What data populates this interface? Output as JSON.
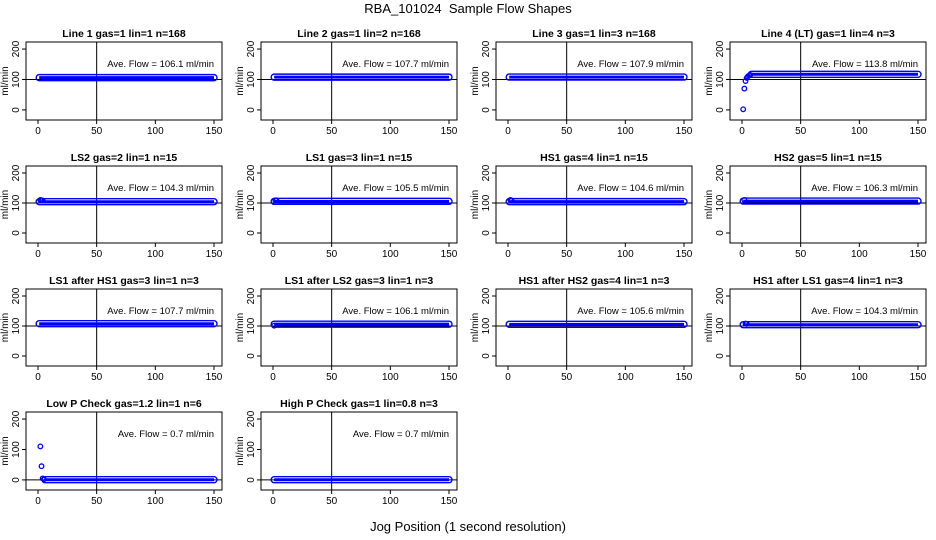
{
  "figure": {
    "title": "RBA_101024  Sample Flow Shapes",
    "xlabel": "Jog Position (1 second resolution)"
  },
  "colors": {
    "points": "#0000ff",
    "axes": "#000000"
  },
  "chart_data": [
    {
      "type": "scatter",
      "title": "Line 1 gas=1 lin=1 n=168",
      "ylabel": "ml/min",
      "annotation": "Ave. Flow =  106.1  ml/min",
      "xlim": [
        0,
        150
      ],
      "ylim": [
        -20,
        210
      ],
      "xticks": [
        0,
        50,
        100,
        150
      ],
      "yticks": [
        0,
        100,
        200
      ],
      "hline": 100,
      "vline": 50,
      "points": [],
      "band": {
        "x": [
          1,
          150
        ],
        "y": 106.1,
        "spread": 2.5
      }
    },
    {
      "type": "scatter",
      "title": "Line 2 gas=1 lin=2 n=168",
      "ylabel": "ml/min",
      "annotation": "Ave. Flow =  107.7  ml/min",
      "xlim": [
        0,
        150
      ],
      "ylim": [
        -20,
        210
      ],
      "xticks": [
        0,
        50,
        100,
        150
      ],
      "yticks": [
        0,
        100,
        200
      ],
      "hline": 100,
      "vline": 50,
      "points": [],
      "band": {
        "x": [
          1,
          150
        ],
        "y": 107.7,
        "spread": 2.5
      }
    },
    {
      "type": "scatter",
      "title": "Line 3 gas=1 lin=3 n=168",
      "ylabel": "ml/min",
      "annotation": "Ave. Flow =  107.9  ml/min",
      "xlim": [
        0,
        150
      ],
      "ylim": [
        -20,
        210
      ],
      "xticks": [
        0,
        50,
        100,
        150
      ],
      "yticks": [
        0,
        100,
        200
      ],
      "hline": 100,
      "vline": 50,
      "points": [],
      "band": {
        "x": [
          1,
          150
        ],
        "y": 107.9,
        "spread": 2.5
      }
    },
    {
      "type": "scatter",
      "title": "Line 4 (LT) gas=1 lin=4 n=3",
      "ylabel": "ml/min",
      "annotation": "Ave. Flow =  113.8  ml/min",
      "xlim": [
        0,
        150
      ],
      "ylim": [
        -20,
        210
      ],
      "xticks": [
        0,
        50,
        100,
        150
      ],
      "yticks": [
        0,
        100,
        200
      ],
      "hline": 100,
      "vline": 50,
      "points": [
        [
          1,
          2
        ],
        [
          2,
          70
        ],
        [
          3,
          95
        ],
        [
          4,
          105
        ],
        [
          5,
          110
        ],
        [
          6,
          113
        ],
        [
          7,
          115
        ]
      ],
      "band": {
        "x": [
          8,
          150
        ],
        "y": 117,
        "spread": 2.5
      }
    },
    {
      "type": "scatter",
      "title": "LS2 gas=2 lin=1 n=15",
      "ylabel": "ml/min",
      "annotation": "Ave. Flow =  104.3  ml/min",
      "xlim": [
        0,
        150
      ],
      "ylim": [
        -20,
        210
      ],
      "xticks": [
        0,
        50,
        100,
        150
      ],
      "yticks": [
        0,
        100,
        200
      ],
      "hline": 100,
      "vline": 50,
      "points": [
        [
          2,
          110
        ],
        [
          3,
          109
        ],
        [
          4,
          108
        ]
      ],
      "band": {
        "x": [
          1,
          150
        ],
        "y": 104.3,
        "spread": 2.5
      }
    },
    {
      "type": "scatter",
      "title": "LS1 gas=3 lin=1 n=15",
      "ylabel": "ml/min",
      "annotation": "Ave. Flow =  105.5  ml/min",
      "xlim": [
        0,
        150
      ],
      "ylim": [
        -20,
        210
      ],
      "xticks": [
        0,
        50,
        100,
        150
      ],
      "yticks": [
        0,
        100,
        200
      ],
      "hline": 100,
      "vline": 50,
      "points": [
        [
          2,
          109
        ],
        [
          3,
          108
        ]
      ],
      "band": {
        "x": [
          1,
          150
        ],
        "y": 105.5,
        "spread": 2.5
      }
    },
    {
      "type": "scatter",
      "title": "HS1 gas=4 lin=1 n=15",
      "ylabel": "ml/min",
      "annotation": "Ave. Flow =  104.6  ml/min",
      "xlim": [
        0,
        150
      ],
      "ylim": [
        -20,
        210
      ],
      "xticks": [
        0,
        50,
        100,
        150
      ],
      "yticks": [
        0,
        100,
        200
      ],
      "hline": 100,
      "vline": 50,
      "points": [
        [
          2,
          110
        ],
        [
          3,
          108
        ]
      ],
      "band": {
        "x": [
          1,
          150
        ],
        "y": 104.6,
        "spread": 2.5
      }
    },
    {
      "type": "scatter",
      "title": "HS2 gas=5 lin=1 n=15",
      "ylabel": "ml/min",
      "annotation": "Ave. Flow =  106.3  ml/min",
      "xlim": [
        0,
        150
      ],
      "ylim": [
        -20,
        210
      ],
      "xticks": [
        0,
        50,
        100,
        150
      ],
      "yticks": [
        0,
        100,
        200
      ],
      "hline": 100,
      "vline": 50,
      "points": [
        [
          2,
          110
        ]
      ],
      "band": {
        "x": [
          1,
          150
        ],
        "y": 106.3,
        "spread": 3
      }
    },
    {
      "type": "scatter",
      "title": "LS1 after HS1 gas=3 lin=1 n=3",
      "ylabel": "ml/min",
      "annotation": "Ave. Flow =  107.7  ml/min",
      "xlim": [
        0,
        150
      ],
      "ylim": [
        -20,
        210
      ],
      "xticks": [
        0,
        50,
        100,
        150
      ],
      "yticks": [
        0,
        100,
        200
      ],
      "hline": 100,
      "vline": 50,
      "points": [],
      "band": {
        "x": [
          1,
          150
        ],
        "y": 107.7,
        "spread": 3
      }
    },
    {
      "type": "scatter",
      "title": "LS1 after LS2 gas=3 lin=1 n=3",
      "ylabel": "ml/min",
      "annotation": "Ave. Flow =  106.1  ml/min",
      "xlim": [
        0,
        150
      ],
      "ylim": [
        -20,
        210
      ],
      "xticks": [
        0,
        50,
        100,
        150
      ],
      "yticks": [
        0,
        100,
        200
      ],
      "hline": 100,
      "vline": 50,
      "points": [
        [
          1,
          101
        ]
      ],
      "band": {
        "x": [
          1,
          150
        ],
        "y": 106.1,
        "spread": 3
      }
    },
    {
      "type": "scatter",
      "title": "HS1 after HS2 gas=4 lin=1 n=3",
      "ylabel": "ml/min",
      "annotation": "Ave. Flow =  105.6  ml/min",
      "xlim": [
        0,
        150
      ],
      "ylim": [
        -20,
        210
      ],
      "xticks": [
        0,
        50,
        100,
        150
      ],
      "yticks": [
        0,
        100,
        200
      ],
      "hline": 100,
      "vline": 50,
      "points": [],
      "band": {
        "x": [
          1,
          150
        ],
        "y": 105.6,
        "spread": 3
      }
    },
    {
      "type": "scatter",
      "title": "HS1 after LS1 gas=4 lin=1 n=3",
      "ylabel": "ml/min",
      "annotation": "Ave. Flow =  104.3  ml/min",
      "xlim": [
        0,
        150
      ],
      "ylim": [
        -20,
        210
      ],
      "xticks": [
        0,
        50,
        100,
        150
      ],
      "yticks": [
        0,
        100,
        200
      ],
      "hline": 100,
      "vline": 50,
      "points": [
        [
          3,
          108
        ],
        [
          4,
          107
        ]
      ],
      "band": {
        "x": [
          1,
          150
        ],
        "y": 104.3,
        "spread": 3
      }
    },
    {
      "type": "scatter",
      "title": "Low P Check gas=1.2 lin=1 n=6",
      "ylabel": "ml/min",
      "annotation": "Ave. Flow =  0.7  ml/min",
      "xlim": [
        0,
        150
      ],
      "ylim": [
        -20,
        210
      ],
      "xticks": [
        0,
        50,
        100,
        150
      ],
      "yticks": [
        0,
        100,
        200
      ],
      "hline": 0,
      "vline": 50,
      "points": [
        [
          2,
          110
        ],
        [
          3,
          45
        ],
        [
          4,
          5
        ],
        [
          5,
          2
        ]
      ],
      "band": {
        "x": [
          6,
          150
        ],
        "y": 0.7,
        "spread": 1
      }
    },
    {
      "type": "scatter",
      "title": "High P Check gas=1 lin=0.8 n=3",
      "ylabel": "ml/min",
      "annotation": "Ave. Flow =  0.7  ml/min",
      "xlim": [
        0,
        150
      ],
      "ylim": [
        -20,
        210
      ],
      "xticks": [
        0,
        50,
        100,
        150
      ],
      "yticks": [
        0,
        100,
        200
      ],
      "hline": 0,
      "vline": 50,
      "points": [],
      "band": {
        "x": [
          1,
          150
        ],
        "y": 0.7,
        "spread": 1
      }
    }
  ]
}
